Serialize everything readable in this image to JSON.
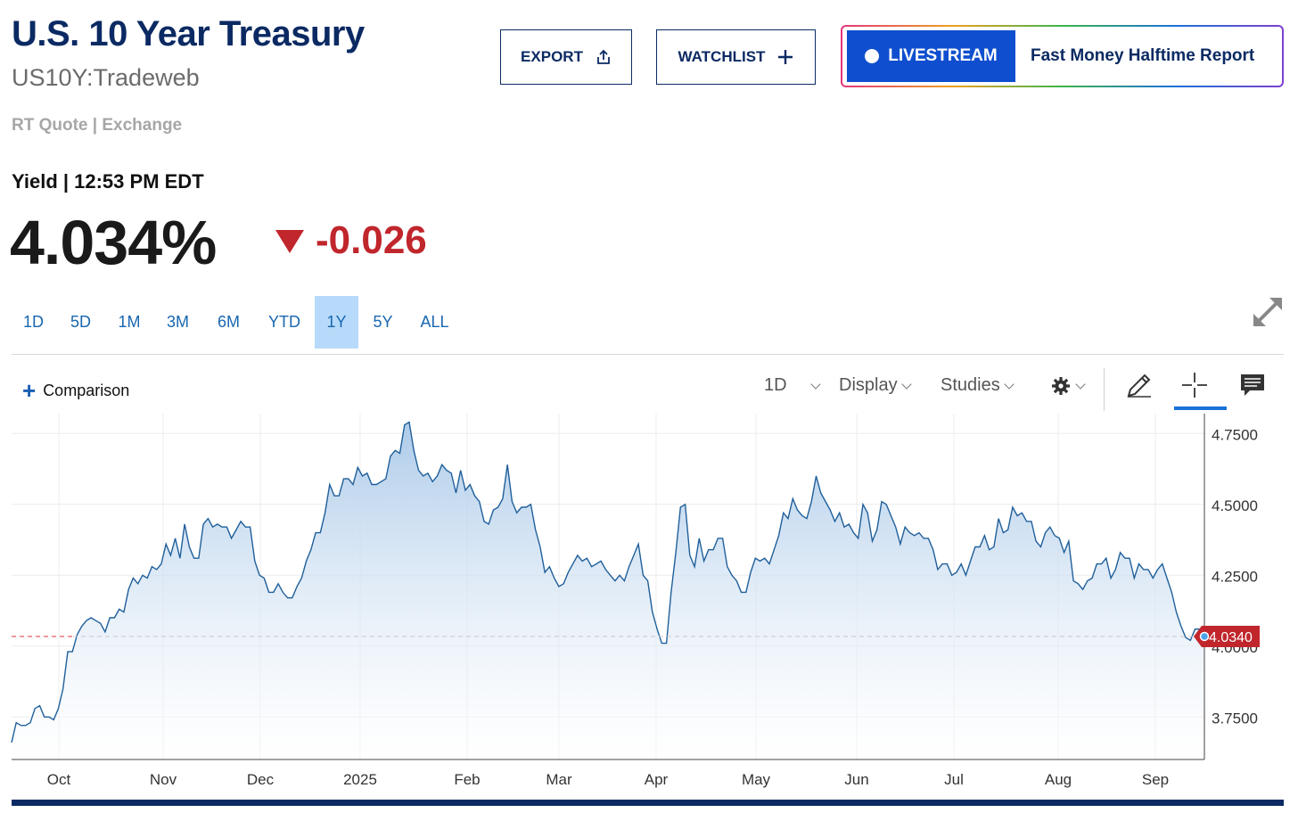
{
  "header": {
    "title": "U.S. 10 Year Treasury",
    "symbol": "US10Y:Tradeweb",
    "quote_type": "RT Quote | Exchange"
  },
  "actions": {
    "export_label": "EXPORT",
    "watchlist_label": "WATCHLIST",
    "livestream_label": "LIVESTREAM",
    "livestream_show": "Fast Money Halftime Report"
  },
  "quote": {
    "label": "Yield | 12:53 PM EDT",
    "value": "4.034%",
    "change": "-0.026",
    "change_color": "#c0262c",
    "direction": "down"
  },
  "ranges": [
    {
      "label": "1D",
      "active": false
    },
    {
      "label": "5D",
      "active": false
    },
    {
      "label": "1M",
      "active": false
    },
    {
      "label": "3M",
      "active": false
    },
    {
      "label": "6M",
      "active": false
    },
    {
      "label": "YTD",
      "active": false
    },
    {
      "label": "1Y",
      "active": true
    },
    {
      "label": "5Y",
      "active": false
    },
    {
      "label": "ALL",
      "active": false
    }
  ],
  "toolbar": {
    "comparison_label": "Comparison",
    "interval_label": "1D",
    "display_label": "Display",
    "studies_label": "Studies",
    "settings_icon": "gear-icon",
    "draw_icon": "pencil-icon",
    "crosshair_icon": "crosshair-icon",
    "comment_icon": "comment-icon"
  },
  "colors": {
    "brand_navy": "#0b2a63",
    "accent_blue": "#1a72d8",
    "line": "#1f5f9a",
    "down_red": "#c0262c"
  },
  "chart_data": {
    "type": "area",
    "series": [
      {
        "values": [
          3.66,
          3.73,
          3.72,
          3.72,
          3.73,
          3.78,
          3.79,
          3.75,
          3.75,
          3.74,
          3.78,
          3.85,
          3.98,
          3.98,
          4.04,
          4.07,
          4.09,
          4.1,
          4.09,
          4.08,
          4.05,
          4.1,
          4.1,
          4.13,
          4.12,
          4.2,
          4.24,
          4.22,
          4.25,
          4.24,
          4.28,
          4.27,
          4.29,
          4.36,
          4.32,
          4.38,
          4.31,
          4.43,
          4.35,
          4.31,
          4.31,
          4.43,
          4.45,
          4.42,
          4.43,
          4.42,
          4.42,
          4.38,
          4.41,
          4.44,
          4.42,
          4.42,
          4.3,
          4.25,
          4.24,
          4.19,
          4.19,
          4.22,
          4.19,
          4.17,
          4.17,
          4.21,
          4.24,
          4.3,
          4.34,
          4.4,
          4.4,
          4.47,
          4.57,
          4.53,
          4.53,
          4.59,
          4.59,
          4.57,
          4.63,
          4.6,
          4.61,
          4.57,
          4.57,
          4.58,
          4.59,
          4.67,
          4.69,
          4.68,
          4.78,
          4.79,
          4.69,
          4.62,
          4.6,
          4.61,
          4.58,
          4.6,
          4.64,
          4.62,
          4.61,
          4.54,
          4.62,
          4.55,
          4.57,
          4.53,
          4.51,
          4.44,
          4.43,
          4.48,
          4.49,
          4.52,
          4.64,
          4.51,
          4.47,
          4.49,
          4.49,
          4.5,
          4.41,
          4.35,
          4.26,
          4.28,
          4.24,
          4.21,
          4.22,
          4.26,
          4.29,
          4.32,
          4.3,
          4.31,
          4.28,
          4.29,
          4.3,
          4.27,
          4.25,
          4.23,
          4.25,
          4.23,
          4.28,
          4.32,
          4.36,
          4.25,
          4.23,
          4.12,
          4.06,
          4.01,
          4.01,
          4.19,
          4.33,
          4.49,
          4.5,
          4.32,
          4.28,
          4.38,
          4.3,
          4.34,
          4.34,
          4.38,
          4.38,
          4.28,
          4.25,
          4.23,
          4.19,
          4.19,
          4.26,
          4.31,
          4.3,
          4.31,
          4.29,
          4.34,
          4.39,
          4.47,
          4.45,
          4.52,
          4.48,
          4.46,
          4.45,
          4.51,
          4.6,
          4.54,
          4.51,
          4.48,
          4.44,
          4.47,
          4.42,
          4.43,
          4.4,
          4.38,
          4.5,
          4.47,
          4.37,
          4.41,
          4.51,
          4.5,
          4.46,
          4.42,
          4.36,
          4.42,
          4.4,
          4.39,
          4.4,
          4.38,
          4.38,
          4.34,
          4.27,
          4.29,
          4.29,
          4.25,
          4.26,
          4.29,
          4.25,
          4.3,
          4.35,
          4.35,
          4.39,
          4.34,
          4.35,
          4.45,
          4.4,
          4.41,
          4.49,
          4.46,
          4.47,
          4.44,
          4.44,
          4.37,
          4.35,
          4.4,
          4.42,
          4.39,
          4.38,
          4.33,
          4.37,
          4.23,
          4.22,
          4.2,
          4.23,
          4.24,
          4.29,
          4.29,
          4.31,
          4.24,
          4.27,
          4.33,
          4.31,
          4.31,
          4.24,
          4.29,
          4.27,
          4.27,
          4.24,
          4.27,
          4.29,
          4.24,
          4.19,
          4.12,
          4.07,
          4.03,
          4.02,
          4.06,
          4.06,
          4.034
        ]
      }
    ],
    "x_labels": [
      "Oct",
      "Nov",
      "Dec",
      "2025",
      "Feb",
      "Mar",
      "Apr",
      "May",
      "Jun",
      "Jul",
      "Aug",
      "Sep"
    ],
    "y_ticks": [
      "4.7500",
      "4.5000",
      "4.2500",
      "4.0000",
      "3.7500"
    ],
    "ylim": [
      3.6,
      4.82
    ],
    "last_value_label": "4.0340",
    "reference_value": 4.034,
    "grid": true
  }
}
